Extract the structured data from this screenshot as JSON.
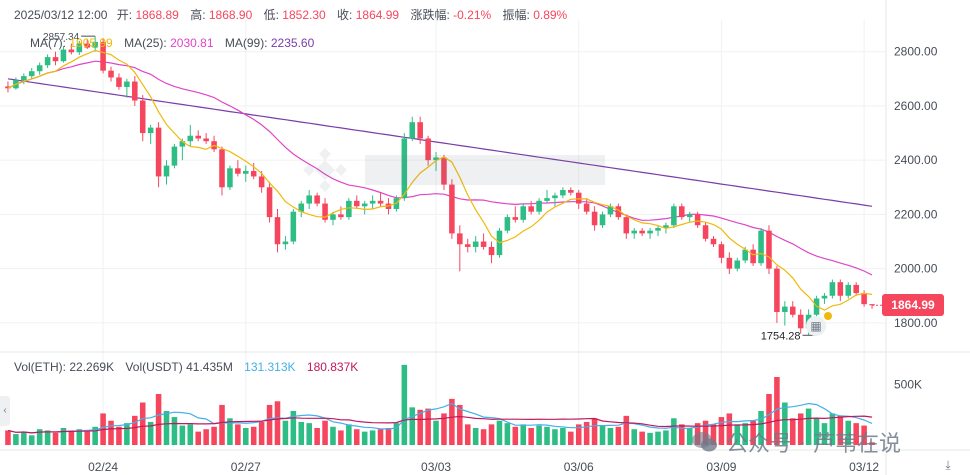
{
  "header": {
    "date": "2025/03/12 12:00",
    "open_label": "开:",
    "open_value": "1868.89",
    "high_label": "高:",
    "high_value": "1868.90",
    "low_label": "低:",
    "low_value": "1852.30",
    "close_label": "收:",
    "close_value": "1864.99",
    "change_label": "涨跌幅:",
    "change_value": "-0.21%",
    "amplitude_label": "振幅:",
    "amplitude_value": "0.89%"
  },
  "ma": {
    "ma7_label": "MA(7):",
    "ma7_value": "1905.99",
    "ma25_label": "MA(25):",
    "ma25_value": "2030.81",
    "ma99_label": "MA(99):",
    "ma99_value": "2235.60"
  },
  "volume_header": {
    "eth_label": "Vol(ETH):",
    "eth_value": "22.269K",
    "usdt_label": "Vol(USDT)",
    "usdt_value": "41.435M",
    "ma1_value": "131.313K",
    "ma2_value": "180.837K"
  },
  "current_price": "1864.99",
  "watermark_text": "公众号 · 芦苇在说",
  "icons": {
    "left_nav": "chevron-left-icon",
    "right_button": "layers-icon",
    "bottom_button": "download-icon"
  },
  "colors": {
    "up": "#2ebd85",
    "down": "#f6465d",
    "ma7": "#f0b90b",
    "ma25": "#e045c8",
    "ma99": "#7a3ca8",
    "vol_ma1": "#45b0e8",
    "vol_ma2": "#c2185b"
  },
  "chart_data": {
    "type": "candlestick",
    "price_axis": {
      "ticks": [
        1800,
        2000,
        2200,
        2400,
        2600,
        2800
      ],
      "tick_labels": [
        "1800.00",
        "2000.00",
        "2200.00",
        "2400.00",
        "2600.00",
        "2800.00"
      ],
      "ylim": [
        1700,
        2880
      ]
    },
    "volume_axis": {
      "ticks": [
        500000
      ],
      "tick_labels": [
        "500K"
      ],
      "ylim": [
        0,
        700000
      ]
    },
    "x_ticks": [
      {
        "label": "02/24",
        "index": 12
      },
      {
        "label": "02/27",
        "index": 30
      },
      {
        "label": "03/03",
        "index": 54
      },
      {
        "label": "03/06",
        "index": 72
      },
      {
        "label": "03/09",
        "index": 90
      },
      {
        "label": "03/12",
        "index": 108
      }
    ],
    "high_marker": {
      "label": "2857.34",
      "value": 2857.34,
      "index": 11
    },
    "low_marker": {
      "label": "1754.28",
      "value": 1754.28,
      "index": 102
    },
    "candles": [
      [
        2672,
        2690,
        2650,
        2665,
        120000
      ],
      [
        2665,
        2705,
        2660,
        2695,
        90000
      ],
      [
        2695,
        2720,
        2680,
        2710,
        110000
      ],
      [
        2710,
        2740,
        2700,
        2728,
        80000
      ],
      [
        2728,
        2760,
        2715,
        2750,
        130000
      ],
      [
        2750,
        2790,
        2740,
        2780,
        120000
      ],
      [
        2780,
        2800,
        2750,
        2765,
        100000
      ],
      [
        2765,
        2820,
        2760,
        2808,
        140000
      ],
      [
        2808,
        2830,
        2790,
        2798,
        120000
      ],
      [
        2798,
        2840,
        2788,
        2830,
        130000
      ],
      [
        2830,
        2848,
        2810,
        2815,
        110000
      ],
      [
        2815,
        2857,
        2800,
        2836,
        150000
      ],
      [
        2836,
        2850,
        2720,
        2730,
        260000
      ],
      [
        2730,
        2745,
        2690,
        2705,
        200000
      ],
      [
        2705,
        2720,
        2660,
        2670,
        150000
      ],
      [
        2670,
        2700,
        2630,
        2690,
        180000
      ],
      [
        2690,
        2710,
        2600,
        2620,
        240000
      ],
      [
        2620,
        2640,
        2470,
        2500,
        350000
      ],
      [
        2500,
        2530,
        2460,
        2520,
        190000
      ],
      [
        2520,
        2540,
        2300,
        2340,
        420000
      ],
      [
        2340,
        2400,
        2310,
        2380,
        280000
      ],
      [
        2380,
        2460,
        2370,
        2450,
        230000
      ],
      [
        2450,
        2480,
        2400,
        2470,
        160000
      ],
      [
        2470,
        2530,
        2450,
        2490,
        170000
      ],
      [
        2490,
        2510,
        2470,
        2480,
        110000
      ],
      [
        2480,
        2500,
        2460,
        2470,
        130000
      ],
      [
        2470,
        2490,
        2430,
        2440,
        150000
      ],
      [
        2440,
        2450,
        2270,
        2300,
        330000
      ],
      [
        2300,
        2380,
        2290,
        2370,
        220000
      ],
      [
        2370,
        2400,
        2340,
        2350,
        170000
      ],
      [
        2350,
        2380,
        2320,
        2360,
        140000
      ],
      [
        2360,
        2390,
        2330,
        2340,
        150000
      ],
      [
        2340,
        2360,
        2280,
        2300,
        190000
      ],
      [
        2300,
        2320,
        2170,
        2190,
        330000
      ],
      [
        2190,
        2220,
        2060,
        2090,
        360000
      ],
      [
        2090,
        2120,
        2070,
        2100,
        200000
      ],
      [
        2100,
        2220,
        2090,
        2210,
        280000
      ],
      [
        2210,
        2250,
        2190,
        2240,
        190000
      ],
      [
        2240,
        2290,
        2220,
        2270,
        180000
      ],
      [
        2270,
        2280,
        2230,
        2240,
        140000
      ],
      [
        2240,
        2260,
        2170,
        2180,
        200000
      ],
      [
        2180,
        2210,
        2160,
        2200,
        150000
      ],
      [
        2200,
        2230,
        2180,
        2190,
        120000
      ],
      [
        2190,
        2260,
        2180,
        2250,
        170000
      ],
      [
        2250,
        2270,
        2220,
        2230,
        130000
      ],
      [
        2230,
        2250,
        2200,
        2240,
        110000
      ],
      [
        2240,
        2270,
        2220,
        2250,
        120000
      ],
      [
        2250,
        2280,
        2230,
        2240,
        130000
      ],
      [
        2240,
        2260,
        2200,
        2220,
        140000
      ],
      [
        2220,
        2270,
        2210,
        2260,
        180000
      ],
      [
        2260,
        2500,
        2250,
        2480,
        660000
      ],
      [
        2480,
        2560,
        2470,
        2540,
        310000
      ],
      [
        2540,
        2560,
        2460,
        2480,
        290000
      ],
      [
        2480,
        2490,
        2380,
        2400,
        300000
      ],
      [
        2400,
        2430,
        2360,
        2410,
        200000
      ],
      [
        2410,
        2420,
        2290,
        2310,
        260000
      ],
      [
        2310,
        2330,
        2110,
        2130,
        380000
      ],
      [
        2130,
        2160,
        1990,
        2090,
        330000
      ],
      [
        2090,
        2110,
        2060,
        2080,
        170000
      ],
      [
        2080,
        2120,
        2060,
        2100,
        140000
      ],
      [
        2100,
        2130,
        2070,
        2080,
        130000
      ],
      [
        2080,
        2100,
        2020,
        2050,
        170000
      ],
      [
        2050,
        2150,
        2040,
        2140,
        200000
      ],
      [
        2140,
        2200,
        2130,
        2190,
        180000
      ],
      [
        2190,
        2230,
        2170,
        2180,
        150000
      ],
      [
        2180,
        2240,
        2170,
        2230,
        170000
      ],
      [
        2230,
        2250,
        2200,
        2210,
        140000
      ],
      [
        2210,
        2260,
        2200,
        2250,
        160000
      ],
      [
        2250,
        2290,
        2240,
        2260,
        150000
      ],
      [
        2260,
        2280,
        2230,
        2270,
        130000
      ],
      [
        2270,
        2300,
        2260,
        2290,
        140000
      ],
      [
        2290,
        2300,
        2270,
        2280,
        110000
      ],
      [
        2280,
        2290,
        2220,
        2240,
        170000
      ],
      [
        2240,
        2260,
        2200,
        2210,
        190000
      ],
      [
        2210,
        2230,
        2140,
        2160,
        220000
      ],
      [
        2160,
        2210,
        2150,
        2200,
        160000
      ],
      [
        2200,
        2240,
        2190,
        2230,
        140000
      ],
      [
        2230,
        2240,
        2180,
        2190,
        150000
      ],
      [
        2190,
        2200,
        2110,
        2130,
        240000
      ],
      [
        2130,
        2150,
        2110,
        2140,
        130000
      ],
      [
        2140,
        2150,
        2120,
        2130,
        110000
      ],
      [
        2130,
        2150,
        2110,
        2140,
        100000
      ],
      [
        2140,
        2160,
        2120,
        2150,
        110000
      ],
      [
        2150,
        2170,
        2130,
        2160,
        120000
      ],
      [
        2160,
        2240,
        2150,
        2230,
        220000
      ],
      [
        2230,
        2240,
        2180,
        2190,
        170000
      ],
      [
        2190,
        2210,
        2170,
        2200,
        140000
      ],
      [
        2200,
        2210,
        2150,
        2160,
        180000
      ],
      [
        2160,
        2170,
        2100,
        2110,
        200000
      ],
      [
        2110,
        2120,
        2080,
        2090,
        170000
      ],
      [
        2090,
        2100,
        2020,
        2040,
        230000
      ],
      [
        2040,
        2060,
        1980,
        2000,
        260000
      ],
      [
        2000,
        2040,
        1990,
        2030,
        170000
      ],
      [
        2030,
        2080,
        2020,
        2070,
        180000
      ],
      [
        2070,
        2090,
        2010,
        2020,
        200000
      ],
      [
        2020,
        2150,
        2010,
        2140,
        280000
      ],
      [
        2140,
        2160,
        1980,
        2000,
        420000
      ],
      [
        2000,
        2010,
        1800,
        1840,
        560000
      ],
      [
        1840,
        1880,
        1790,
        1860,
        350000
      ],
      [
        1860,
        1880,
        1820,
        1830,
        220000
      ],
      [
        1830,
        1850,
        1760,
        1780,
        260000
      ],
      [
        1780,
        1850,
        1754,
        1830,
        300000
      ],
      [
        1830,
        1900,
        1820,
        1890,
        220000
      ],
      [
        1890,
        1910,
        1870,
        1900,
        180000
      ],
      [
        1900,
        1960,
        1890,
        1950,
        260000
      ],
      [
        1950,
        1960,
        1880,
        1900,
        240000
      ],
      [
        1900,
        1950,
        1890,
        1940,
        200000
      ],
      [
        1940,
        1950,
        1900,
        1910,
        180000
      ],
      [
        1910,
        1920,
        1860,
        1869,
        160000
      ],
      [
        1869,
        1869,
        1852,
        1865,
        22269
      ]
    ]
  }
}
